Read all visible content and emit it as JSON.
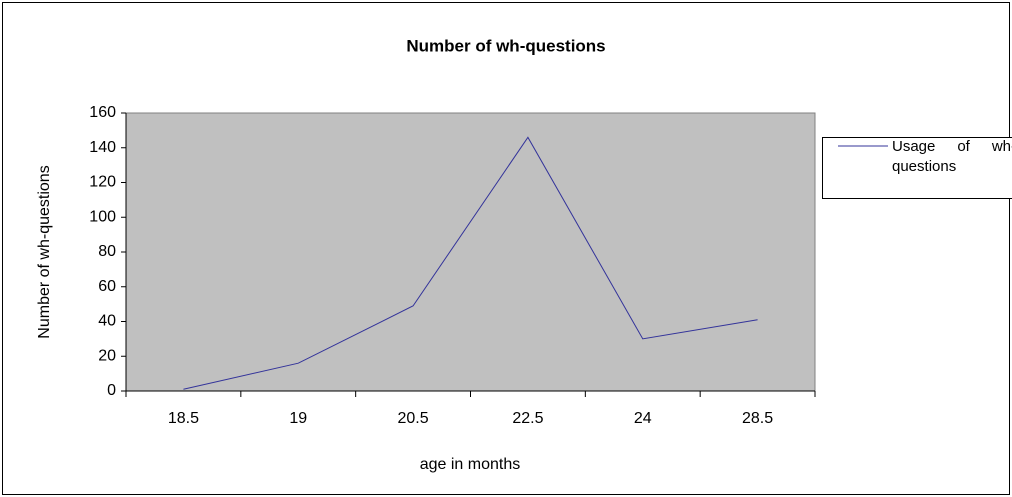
{
  "chart_data": {
    "type": "line",
    "title": "Number of wh-questions",
    "x_label": "age in months",
    "y_label": "Number of wh-questions",
    "categories": [
      "18.5",
      "19",
      "20.5",
      "22.5",
      "24",
      "28.5"
    ],
    "series": [
      {
        "name": "Usage of wh-questions",
        "color": "#33339a",
        "values": [
          1,
          16,
          49,
          146,
          30,
          41
        ]
      }
    ],
    "ylim": [
      0,
      160
    ],
    "yticks": [
      0,
      20,
      40,
      60,
      80,
      100,
      120,
      140,
      160
    ],
    "legend": "right",
    "plot_background": "#c0c0c0"
  }
}
